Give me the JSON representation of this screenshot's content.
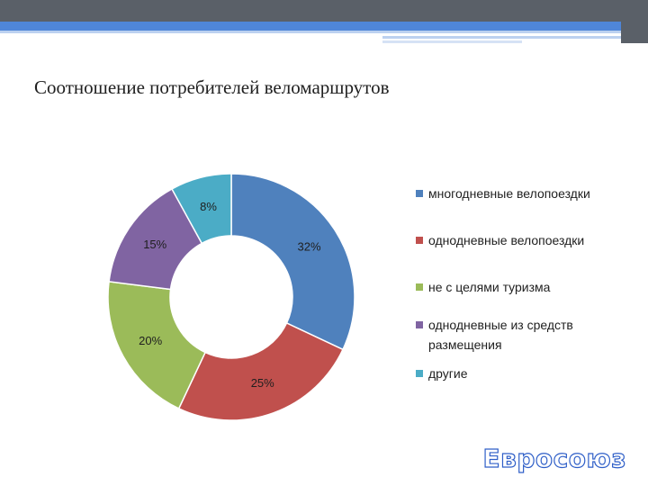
{
  "slide": {
    "title": "Соотношение потребителей веломаршрутов",
    "footer_label": "Евросоюз"
  },
  "colors": {
    "topbar_dark": "#5a6068",
    "topbar_accent": "#4f86d8",
    "topbar_light": "#bcd1f0"
  },
  "chart_data": {
    "type": "pie",
    "donut": true,
    "legend_position": "right",
    "series": [
      {
        "name": "многодневные велопоездки",
        "value": 32,
        "label": "32%",
        "color": "#4f81bd"
      },
      {
        "name": "однодневные велопоездки",
        "value": 25,
        "label": "25%",
        "color": "#c0504d"
      },
      {
        "name": "не с целями туризма",
        "value": 20,
        "label": "20%",
        "color": "#9bbb59"
      },
      {
        "name": "однодневные из средств размещения",
        "value": 15,
        "label": "15%",
        "color": "#8064a2"
      },
      {
        "name": "другие",
        "value": 8,
        "label": "8%",
        "color": "#4bacc6"
      }
    ]
  }
}
